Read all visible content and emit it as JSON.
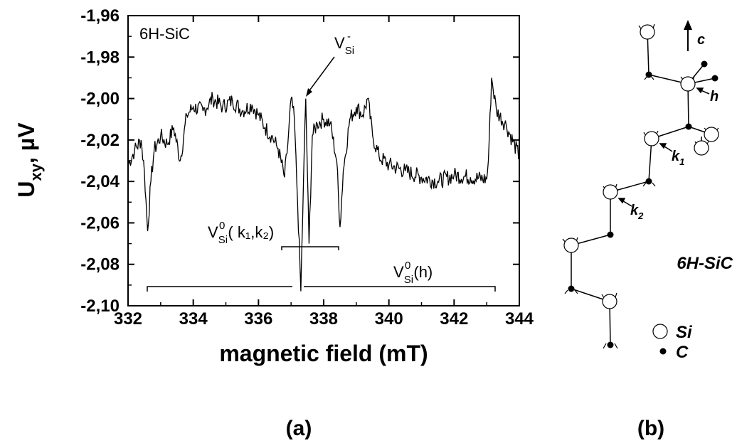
{
  "chart_data": {
    "type": "line",
    "xlabel": "magnetic field (mT)",
    "ylabel_main": "U",
    "ylabel_sub": "xy",
    "ylabel_rest": ", µV",
    "xlim": [
      332,
      344
    ],
    "ylim": [
      -2.1,
      -1.96
    ],
    "x_tick_values": [
      332,
      334,
      336,
      338,
      340,
      342,
      344
    ],
    "x_tick_labels": [
      "332",
      "334",
      "336",
      "338",
      "340",
      "342",
      "344"
    ],
    "y_tick_values": [
      -1.96,
      -1.98,
      -2.0,
      -2.02,
      -2.04,
      -2.06,
      -2.08,
      -2.1
    ],
    "y_tick_labels": [
      "-1,96",
      "-1,98",
      "-2,00",
      "-2,02",
      "-2,04",
      "-2,06",
      "-2,08",
      "-2,10"
    ],
    "inplot_label": "6H-SiC",
    "series": [
      {
        "points": [
          [
            332.0,
            -2.032
          ],
          [
            332.2,
            -2.025
          ],
          [
            332.4,
            -2.02
          ],
          [
            332.5,
            -2.035
          ],
          [
            332.6,
            -2.064
          ],
          [
            332.7,
            -2.04
          ],
          [
            332.8,
            -2.025
          ],
          [
            333.0,
            -2.018
          ],
          [
            333.2,
            -2.022
          ],
          [
            333.4,
            -2.014
          ],
          [
            333.6,
            -2.03
          ],
          [
            333.8,
            -2.008
          ],
          [
            334.0,
            -2.004
          ],
          [
            334.3,
            -2.006
          ],
          [
            334.6,
            -2.0
          ],
          [
            334.9,
            -2.004
          ],
          [
            335.2,
            -2.001
          ],
          [
            335.5,
            -2.006
          ],
          [
            335.8,
            -2.003
          ],
          [
            336.0,
            -2.008
          ],
          [
            336.2,
            -2.014
          ],
          [
            336.4,
            -2.018
          ],
          [
            336.6,
            -2.024
          ],
          [
            336.8,
            -2.038
          ],
          [
            336.9,
            -2.022
          ],
          [
            337.0,
            -2.0
          ],
          [
            337.1,
            -2.01
          ],
          [
            337.2,
            -2.05
          ],
          [
            337.3,
            -2.093
          ],
          [
            337.38,
            -2.04
          ],
          [
            337.45,
            -2.0
          ],
          [
            337.55,
            -2.07
          ],
          [
            337.65,
            -2.018
          ],
          [
            337.8,
            -2.012
          ],
          [
            338.0,
            -2.01
          ],
          [
            338.2,
            -2.012
          ],
          [
            338.4,
            -2.03
          ],
          [
            338.5,
            -2.062
          ],
          [
            338.6,
            -2.035
          ],
          [
            338.8,
            -2.01
          ],
          [
            339.0,
            -2.004
          ],
          [
            339.2,
            -2.008
          ],
          [
            339.35,
            -2.0
          ],
          [
            339.5,
            -2.018
          ],
          [
            339.7,
            -2.028
          ],
          [
            340.0,
            -2.032
          ],
          [
            340.5,
            -2.035
          ],
          [
            341.0,
            -2.038
          ],
          [
            341.5,
            -2.04
          ],
          [
            342.0,
            -2.037
          ],
          [
            342.5,
            -2.038
          ],
          [
            343.0,
            -2.039
          ],
          [
            343.05,
            -2.03
          ],
          [
            343.15,
            -1.99
          ],
          [
            343.3,
            -2.006
          ],
          [
            343.6,
            -2.013
          ],
          [
            344.0,
            -2.028
          ]
        ]
      }
    ],
    "annotations": {
      "vsi_minus": {
        "base": "V",
        "sub": "Si",
        "sup": "-",
        "x": 337.5,
        "y": -2.0
      },
      "vsi0_k": {
        "base": "V",
        "sub": "Si",
        "sup": "0",
        "paren": "( k₁,k₂)",
        "range": [
          336.8,
          338.5
        ],
        "y": -2.072
      },
      "vsi0_h": {
        "base": "V",
        "sub": "Si",
        "sup": "0",
        "paren": "(h)",
        "range": [
          332.6,
          343.3
        ],
        "y": -2.095
      }
    }
  },
  "panel_a_label": "(a)",
  "panel_b_label": "(b)",
  "structure": {
    "c_axis_label": "c",
    "h_label": "h",
    "k1_label": "k",
    "k1_sub": "1",
    "k2_label": "k",
    "k2_sub": "2",
    "material_label": "6H-SiC",
    "legend_si_label": "Si",
    "legend_c_label": "C"
  }
}
